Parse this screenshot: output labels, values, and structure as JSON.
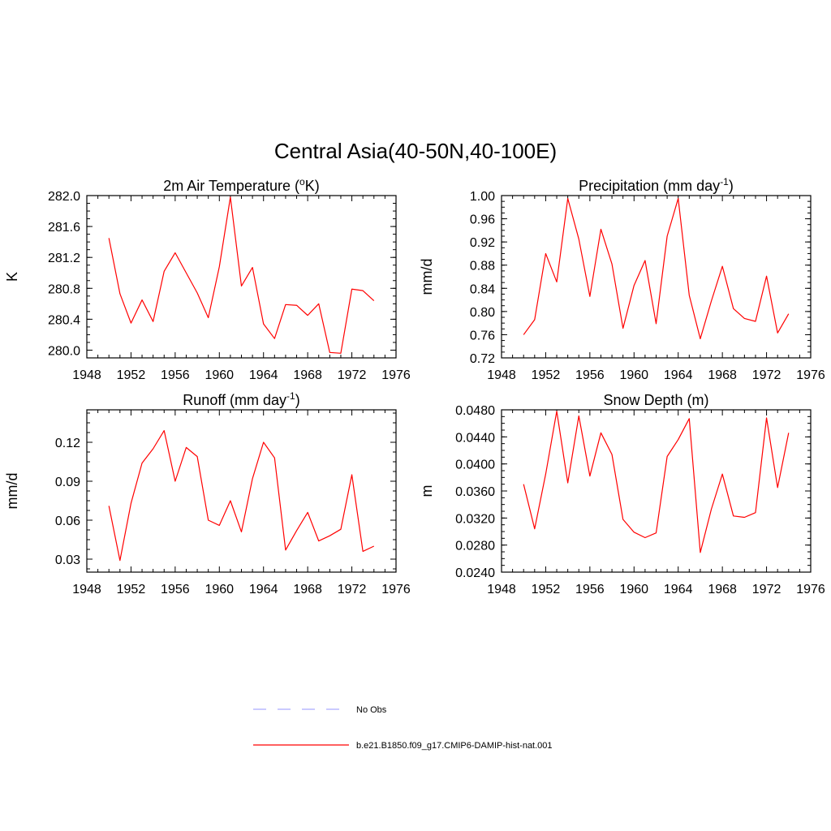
{
  "title": "Central Asia(40-50N,40-100E)",
  "colors": {
    "model": "#ff0000",
    "obs": "#aaaaff"
  },
  "legend": {
    "items": [
      {
        "label": "No Obs",
        "style": "dashed",
        "color": "#aaaaff"
      },
      {
        "label": "b.e21.B1850.f09_g17.CMIP6-DAMIP-hist-nat.001",
        "style": "solid",
        "color": "#ff0000"
      }
    ]
  },
  "chart_data": [
    {
      "type": "line",
      "title": "2m Air Temperature (",
      "title_sup": "o",
      "title_after": "K)",
      "ylabel": "K",
      "xlim": [
        1948,
        1976
      ],
      "ylim": [
        279.9,
        282.0
      ],
      "xticks": [
        1948,
        1952,
        1956,
        1960,
        1964,
        1968,
        1972,
        1976
      ],
      "yticks": [
        "280.0",
        "280.4",
        "280.8",
        "281.2",
        "281.6",
        "282.0"
      ],
      "x": [
        1950,
        1951,
        1952,
        1953,
        1954,
        1955,
        1956,
        1957,
        1958,
        1959,
        1960,
        1961,
        1962,
        1963,
        1964,
        1965,
        1966,
        1967,
        1968,
        1969,
        1970,
        1971,
        1972,
        1973,
        1974
      ],
      "series": [
        {
          "values": [
            281.45,
            280.73,
            280.35,
            280.65,
            280.37,
            281.02,
            281.26,
            281.0,
            280.74,
            280.42,
            281.08,
            281.98,
            280.83,
            281.07,
            280.34,
            280.15,
            280.59,
            280.58,
            280.45,
            280.6,
            279.97,
            279.96,
            280.79,
            280.77,
            280.64
          ]
        }
      ]
    },
    {
      "type": "line",
      "title": "Precipitation (mm day",
      "title_sup": "-1",
      "title_after": ")",
      "ylabel": "mm/d",
      "xlim": [
        1948,
        1976
      ],
      "ylim": [
        0.72,
        1.0
      ],
      "xticks": [
        1948,
        1952,
        1956,
        1960,
        1964,
        1968,
        1972,
        1976
      ],
      "yticks": [
        "0.72",
        "0.76",
        "0.80",
        "0.84",
        "0.88",
        "0.92",
        "0.96",
        "1.00"
      ],
      "x": [
        1950,
        1951,
        1952,
        1953,
        1954,
        1955,
        1956,
        1957,
        1958,
        1959,
        1960,
        1961,
        1962,
        1963,
        1964,
        1965,
        1966,
        1967,
        1968,
        1969,
        1970,
        1971,
        1972,
        1973,
        1974
      ],
      "series": [
        {
          "values": [
            0.76,
            0.786,
            0.9,
            0.851,
            0.995,
            0.925,
            0.826,
            0.942,
            0.882,
            0.771,
            0.845,
            0.888,
            0.779,
            0.93,
            0.995,
            0.828,
            0.753,
            0.818,
            0.878,
            0.805,
            0.788,
            0.783,
            0.861,
            0.763,
            0.796
          ]
        }
      ]
    },
    {
      "type": "line",
      "title": "Runoff (mm day",
      "title_sup": "-1",
      "title_after": ")",
      "ylabel": "mm/d",
      "xlim": [
        1948,
        1976
      ],
      "ylim": [
        0.02,
        0.145
      ],
      "xticks": [
        1948,
        1952,
        1956,
        1960,
        1964,
        1968,
        1972,
        1976
      ],
      "yticks": [
        "0.03",
        "0.06",
        "0.09",
        "0.12"
      ],
      "x": [
        1950,
        1951,
        1952,
        1953,
        1954,
        1955,
        1956,
        1957,
        1958,
        1959,
        1960,
        1961,
        1962,
        1963,
        1964,
        1965,
        1966,
        1967,
        1968,
        1969,
        1970,
        1971,
        1972,
        1973,
        1974
      ],
      "series": [
        {
          "values": [
            0.071,
            0.029,
            0.073,
            0.104,
            0.115,
            0.129,
            0.09,
            0.116,
            0.109,
            0.06,
            0.056,
            0.075,
            0.051,
            0.092,
            0.12,
            0.108,
            0.037,
            0.052,
            0.066,
            0.044,
            0.048,
            0.053,
            0.095,
            0.036,
            0.04
          ]
        }
      ]
    },
    {
      "type": "line",
      "title": "Snow Depth (m)",
      "title_sup": "",
      "title_after": "",
      "ylabel": "m",
      "xlim": [
        1948,
        1976
      ],
      "ylim": [
        0.024,
        0.048
      ],
      "xticks": [
        1948,
        1952,
        1956,
        1960,
        1964,
        1968,
        1972,
        1976
      ],
      "yticks": [
        "0.0240",
        "0.0280",
        "0.0320",
        "0.0360",
        "0.0400",
        "0.0440",
        "0.0480"
      ],
      "x": [
        1950,
        1951,
        1952,
        1953,
        1954,
        1955,
        1956,
        1957,
        1958,
        1959,
        1960,
        1961,
        1962,
        1963,
        1964,
        1965,
        1966,
        1967,
        1968,
        1969,
        1970,
        1971,
        1972,
        1973,
        1974
      ],
      "series": [
        {
          "values": [
            0.037,
            0.0304,
            0.0385,
            0.0478,
            0.0372,
            0.0471,
            0.0382,
            0.0446,
            0.0414,
            0.0318,
            0.0299,
            0.0291,
            0.0298,
            0.0411,
            0.0436,
            0.0467,
            0.0269,
            0.0333,
            0.0385,
            0.0323,
            0.0321,
            0.0328,
            0.0468,
            0.0365,
            0.0446
          ]
        }
      ]
    }
  ]
}
